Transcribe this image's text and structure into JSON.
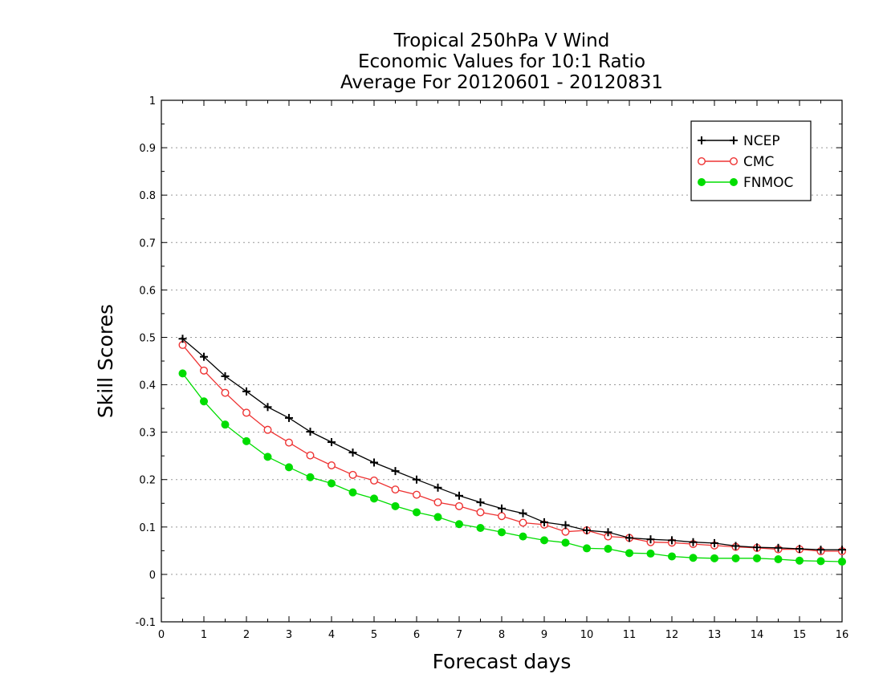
{
  "chart_data": {
    "type": "line",
    "title": [
      "Tropical 250hPa V Wind",
      "Economic Values for 10:1 Ratio",
      "Average For 20120601 - 20120831"
    ],
    "xlabel": "Forecast days",
    "ylabel": "Skill Scores",
    "xlim": [
      0,
      16
    ],
    "ylim": [
      -0.1,
      1
    ],
    "xticks": [
      0,
      1,
      2,
      3,
      4,
      5,
      6,
      7,
      8,
      9,
      10,
      11,
      12,
      13,
      14,
      15,
      16
    ],
    "xtick_labels": [
      "0",
      "1",
      "2",
      "3",
      "4",
      "5",
      "6",
      "7",
      "8",
      "9",
      "10",
      "11",
      "12",
      "13",
      "14",
      "15",
      "16"
    ],
    "yticks": [
      -0.1,
      0,
      0.1,
      0.2,
      0.3,
      0.4,
      0.5,
      0.6,
      0.7,
      0.8,
      0.9,
      1
    ],
    "ytick_labels": [
      "-0.1",
      "0",
      "0.1",
      "0.2",
      "0.3",
      "0.4",
      "0.5",
      "0.6",
      "0.7",
      "0.8",
      "0.9",
      "1"
    ],
    "grid": "horizontal dotted",
    "legend_position": "top-right",
    "x": [
      0.5,
      1,
      1.5,
      2,
      2.5,
      3,
      3.5,
      4,
      4.5,
      5,
      5.5,
      6,
      6.5,
      7,
      7.5,
      8,
      8.5,
      9,
      9.5,
      10,
      10.5,
      11,
      11.5,
      12,
      12.5,
      13,
      13.5,
      14,
      14.5,
      15,
      15.5,
      16
    ],
    "series": [
      {
        "name": "NCEP",
        "color": "#000000",
        "marker": "plus",
        "values": [
          0.497,
          0.459,
          0.418,
          0.386,
          0.353,
          0.33,
          0.301,
          0.279,
          0.257,
          0.236,
          0.218,
          0.2,
          0.183,
          0.166,
          0.152,
          0.139,
          0.129,
          0.11,
          0.104,
          0.093,
          0.089,
          0.077,
          0.074,
          0.072,
          0.068,
          0.066,
          0.06,
          0.057,
          0.056,
          0.054,
          0.052,
          0.052
        ]
      },
      {
        "name": "CMC",
        "color": "#ee3333",
        "marker": "open-circle",
        "values": [
          0.484,
          0.43,
          0.383,
          0.341,
          0.305,
          0.278,
          0.251,
          0.23,
          0.21,
          0.198,
          0.179,
          0.168,
          0.152,
          0.144,
          0.131,
          0.123,
          0.109,
          0.105,
          0.09,
          0.093,
          0.08,
          0.077,
          0.068,
          0.067,
          0.064,
          0.061,
          0.058,
          0.056,
          0.053,
          0.053,
          0.049,
          0.049
        ]
      },
      {
        "name": "FNMOC",
        "color": "#00dd00",
        "marker": "filled-circle",
        "values": [
          0.424,
          0.365,
          0.316,
          0.281,
          0.248,
          0.226,
          0.205,
          0.192,
          0.173,
          0.16,
          0.144,
          0.131,
          0.121,
          0.106,
          0.098,
          0.089,
          0.08,
          0.072,
          0.067,
          0.055,
          0.054,
          0.045,
          0.044,
          0.038,
          0.035,
          0.034,
          0.034,
          0.034,
          0.032,
          0.029,
          0.028,
          0.027
        ]
      }
    ]
  }
}
